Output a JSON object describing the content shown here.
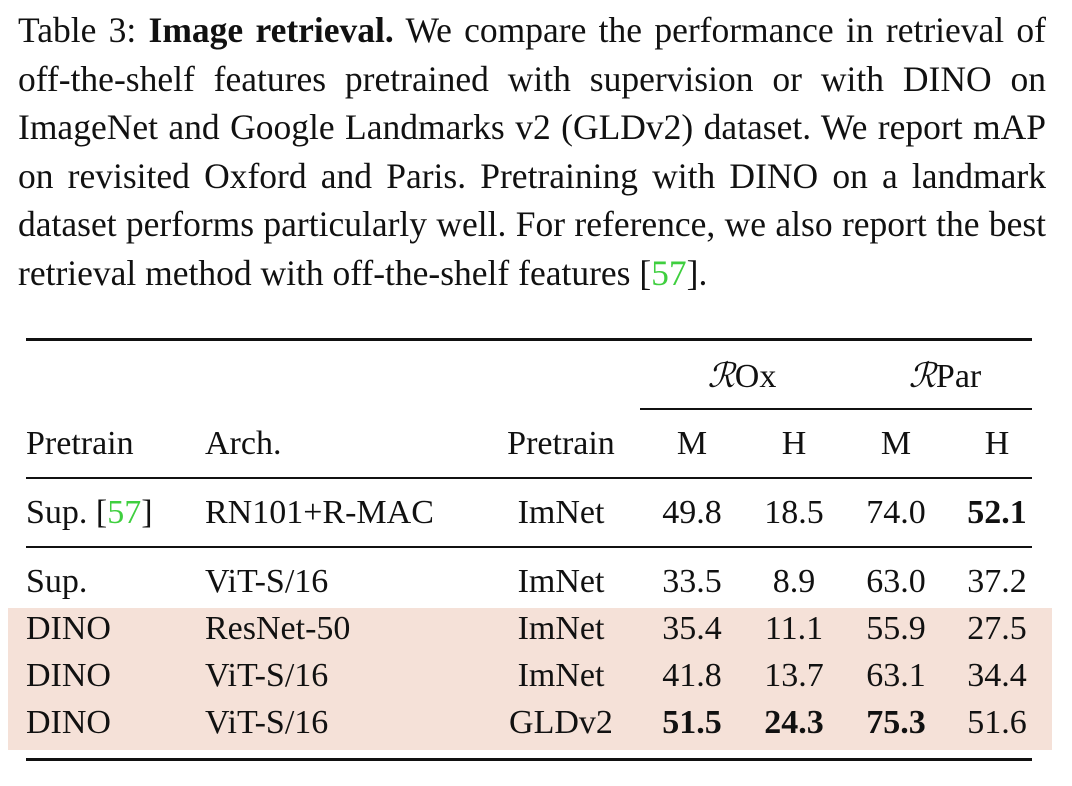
{
  "caption": {
    "label": "Table 3:",
    "title": "Image retrieval.",
    "text_before_cite": "We compare the performance in retrieval of off-the-shelf features pretrained with supervision or with DINO on ImageNet and Google Landmarks v2 (GLDv2) dataset.  We report mAP on revisited Oxford and Paris. Pretraining with DINO on a landmark dataset performs particularly well. For reference, we also report the best retrieval method with off-the-shelf features [",
    "cite": "57",
    "text_after_cite": "]."
  },
  "table": {
    "group_headers": {
      "rox_symbol": "ℛ",
      "rox_suffix": "Ox",
      "rpar_symbol": "ℛ",
      "rpar_suffix": "Par"
    },
    "headers": [
      "Pretrain",
      "Arch.",
      "Pretrain",
      "M",
      "H",
      "M",
      "H"
    ],
    "rows": [
      {
        "pretrain_prefix": "Sup. [",
        "pretrain_cite": "57",
        "pretrain_suffix": "]",
        "arch": "RN101+R-MAC",
        "dataset": "ImNet",
        "rox_m": "49.8",
        "rox_h": "18.5",
        "rpar_m": "74.0",
        "rpar_h": "52.1",
        "bold_cells": [
          "rpar_h"
        ]
      },
      {
        "pretrain": "Sup.",
        "arch": "ViT-S/16",
        "dataset": "ImNet",
        "rox_m": "33.5",
        "rox_h": "8.9",
        "rpar_m": "63.0",
        "rpar_h": "37.2",
        "bold_cells": []
      },
      {
        "pretrain": "DINO",
        "arch": "ResNet-50",
        "dataset": "ImNet",
        "rox_m": "35.4",
        "rox_h": "11.1",
        "rpar_m": "55.9",
        "rpar_h": "27.5",
        "bold_cells": [],
        "highlighted": true
      },
      {
        "pretrain": "DINO",
        "arch": "ViT-S/16",
        "dataset": "ImNet",
        "rox_m": "41.8",
        "rox_h": "13.7",
        "rpar_m": "63.1",
        "rpar_h": "34.4",
        "bold_cells": [],
        "highlighted": true
      },
      {
        "pretrain": "DINO",
        "arch": "ViT-S/16",
        "dataset": "GLDv2",
        "rox_m": "51.5",
        "rox_h": "24.3",
        "rpar_m": "75.3",
        "rpar_h": "51.6",
        "bold_cells": [
          "rox_m",
          "rox_h",
          "rpar_m"
        ],
        "highlighted": true
      }
    ]
  },
  "colors": {
    "citation_green": "#3fcf3f",
    "highlight_row": "#f5e1d8",
    "text": "#111111"
  }
}
